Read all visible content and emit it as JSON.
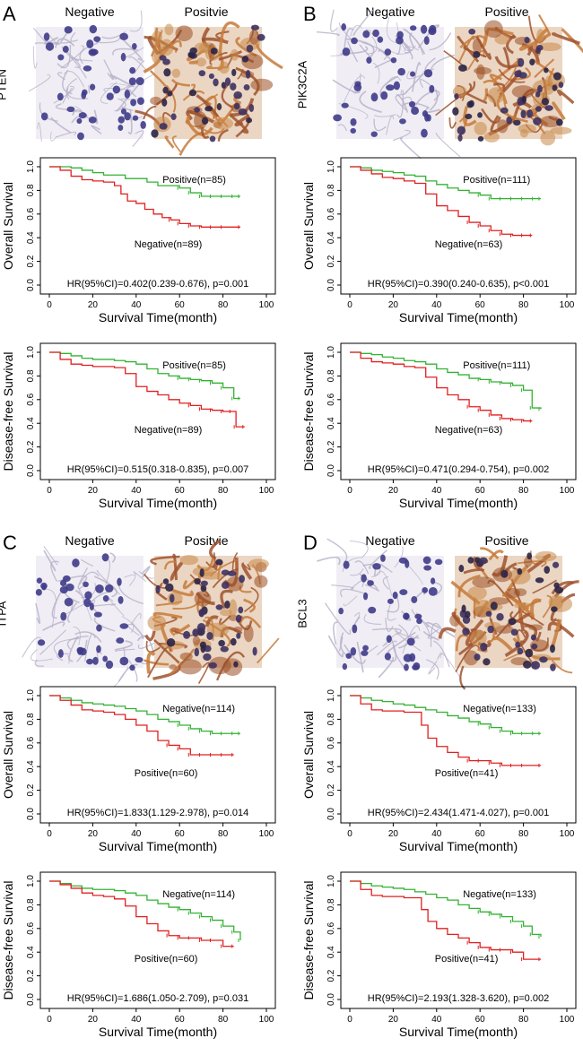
{
  "colors": {
    "positive_line": "#33b233",
    "negative_line": "#e02020",
    "axis": "#000000"
  },
  "panels": [
    {
      "letter": "A",
      "gene": "PTEN",
      "ihc": {
        "left": "Negative",
        "right": "Positvie",
        "left_stain": "negative",
        "right_stain": "positive"
      },
      "plots": [
        {
          "title_y": "Overall Survival",
          "xlabel": "Survival Time(month)",
          "hr_text": "HR(95%CI)=0.402(0.239-0.676), p=0.001",
          "legend_green": "Positive(n=85)",
          "legend_red": "Negative(n=89)"
        },
        {
          "title_y": "Disease-free Survival",
          "xlabel": "Survival Time(month)",
          "hr_text": "HR(95%CI)=0.515(0.318-0.835), p=0.007",
          "legend_green": "Positive(n=85)",
          "legend_red": "Negative(n=89)"
        }
      ]
    },
    {
      "letter": "B",
      "gene": "PIK3C2A",
      "ihc": {
        "left": "Negative",
        "right": "Positive",
        "left_stain": "negative",
        "right_stain": "positive"
      },
      "plots": [
        {
          "title_y": "Overall Survival",
          "xlabel": "Survival Time(month)",
          "hr_text": "HR(95%CI)=0.390(0.240-0.635), p<0.001",
          "legend_green": "Positive(n=111)",
          "legend_red": "Negative(n=63)"
        },
        {
          "title_y": "Disease-free Survival",
          "xlabel": "Survival Time(month)",
          "hr_text": "HR(95%CI)=0.471(0.294-0.754), p=0.002",
          "legend_green": "Positive(n=111)",
          "legend_red": "Negative(n=63)"
        }
      ]
    },
    {
      "letter": "C",
      "gene": "ITPA",
      "ihc": {
        "left": "Negative",
        "right": "Positvie",
        "left_stain": "negative",
        "right_stain": "positive"
      },
      "plots": [
        {
          "title_y": "Overall Survival",
          "xlabel": "Survival Time(month)",
          "hr_text": "HR(95%CI)=1.833(1.129-2.978), p=0.014",
          "legend_green": "Negative(n=114)",
          "legend_red": "Positive(n=60)"
        },
        {
          "title_y": "Disease-free Survival",
          "xlabel": "Survival Time(month)",
          "hr_text": "HR(95%CI)=1.686(1.050-2.709), p=0.031",
          "legend_green": "Negative(n=114)",
          "legend_red": "Positive(n=60)"
        }
      ]
    },
    {
      "letter": "D",
      "gene": "BCL3",
      "ihc": {
        "left": "Negative",
        "right": "Positive",
        "left_stain": "negative",
        "right_stain": "positive"
      },
      "plots": [
        {
          "title_y": "Overall Survival",
          "xlabel": "Survival Time(month)",
          "hr_text": "HR(95%CI)=2.434(1.471-4.027), p=0.001",
          "legend_green": "Negative(n=133)",
          "legend_red": "Positive(n=41)"
        },
        {
          "title_y": "Disease-free Survival",
          "xlabel": "Survival Time(month)",
          "hr_text": "HR(95%CI)=2.193(1.328-3.620), p=0.002",
          "legend_green": "Negative(n=133)",
          "legend_red": "Positive(n=41)"
        }
      ]
    }
  ],
  "chart_data": [
    {
      "id": "A-OS",
      "type": "line",
      "xlabel": "Survival Time(month)",
      "ylabel": "Overall Survival",
      "xlim": [
        0,
        100
      ],
      "ylim": [
        0,
        1
      ],
      "xticks": [
        0,
        20,
        40,
        60,
        80,
        100
      ],
      "yticks": [
        0.0,
        0.2,
        0.4,
        0.6,
        0.8,
        1.0
      ],
      "series": [
        {
          "name": "Positive(n=85)",
          "color": "green",
          "x": [
            0,
            5,
            10,
            15,
            20,
            25,
            30,
            35,
            40,
            45,
            50,
            55,
            60,
            65,
            70,
            75,
            80,
            85,
            88
          ],
          "y": [
            1.0,
            1.0,
            0.99,
            0.97,
            0.95,
            0.93,
            0.93,
            0.9,
            0.9,
            0.87,
            0.84,
            0.84,
            0.82,
            0.78,
            0.75,
            0.75,
            0.75,
            0.75,
            0.75
          ]
        },
        {
          "name": "Negative(n=89)",
          "color": "red",
          "x": [
            0,
            5,
            10,
            15,
            20,
            25,
            30,
            33,
            36,
            40,
            44,
            48,
            52,
            56,
            60,
            65,
            70,
            75,
            80,
            88
          ],
          "y": [
            1.0,
            0.97,
            0.92,
            0.89,
            0.88,
            0.87,
            0.84,
            0.77,
            0.71,
            0.69,
            0.64,
            0.6,
            0.57,
            0.55,
            0.52,
            0.5,
            0.49,
            0.49,
            0.49,
            0.49
          ]
        }
      ]
    },
    {
      "id": "A-DFS",
      "type": "line",
      "xlabel": "Survival Time(month)",
      "ylabel": "Disease-free Survival",
      "xlim": [
        0,
        100
      ],
      "ylim": [
        0,
        1
      ],
      "xticks": [
        0,
        20,
        40,
        60,
        80,
        100
      ],
      "yticks": [
        0.0,
        0.2,
        0.4,
        0.6,
        0.8,
        1.0
      ],
      "series": [
        {
          "name": "Positive(n=85)",
          "color": "green",
          "x": [
            0,
            5,
            10,
            15,
            20,
            25,
            30,
            35,
            40,
            45,
            50,
            55,
            60,
            65,
            70,
            75,
            80,
            85,
            88
          ],
          "y": [
            1.0,
            0.99,
            0.97,
            0.95,
            0.94,
            0.94,
            0.93,
            0.92,
            0.9,
            0.86,
            0.82,
            0.8,
            0.78,
            0.77,
            0.76,
            0.74,
            0.7,
            0.61,
            0.61
          ]
        },
        {
          "name": "Negative(n=89)",
          "color": "red",
          "x": [
            0,
            5,
            10,
            15,
            20,
            25,
            30,
            35,
            40,
            45,
            50,
            55,
            60,
            65,
            70,
            75,
            80,
            84,
            86,
            90
          ],
          "y": [
            1.0,
            0.94,
            0.9,
            0.89,
            0.88,
            0.88,
            0.87,
            0.82,
            0.71,
            0.67,
            0.64,
            0.6,
            0.57,
            0.55,
            0.52,
            0.51,
            0.5,
            0.5,
            0.37,
            0.37
          ]
        }
      ]
    },
    {
      "id": "B-OS",
      "type": "line",
      "xlabel": "Survival Time(month)",
      "ylabel": "Overall Survival",
      "xlim": [
        0,
        100
      ],
      "ylim": [
        0,
        1
      ],
      "xticks": [
        0,
        20,
        40,
        60,
        80,
        100
      ],
      "yticks": [
        0.0,
        0.2,
        0.4,
        0.6,
        0.8,
        1.0
      ],
      "series": [
        {
          "name": "Positive(n=111)",
          "color": "green",
          "x": [
            0,
            5,
            10,
            15,
            20,
            25,
            30,
            35,
            40,
            45,
            50,
            55,
            60,
            65,
            70,
            75,
            80,
            85,
            88
          ],
          "y": [
            1.0,
            0.99,
            0.97,
            0.96,
            0.95,
            0.93,
            0.92,
            0.88,
            0.85,
            0.82,
            0.8,
            0.78,
            0.76,
            0.73,
            0.73,
            0.73,
            0.73,
            0.73,
            0.73
          ]
        },
        {
          "name": "Negative(n=63)",
          "color": "red",
          "x": [
            0,
            5,
            10,
            15,
            20,
            25,
            30,
            35,
            40,
            45,
            50,
            55,
            60,
            65,
            70,
            75,
            80,
            84
          ],
          "y": [
            1.0,
            0.97,
            0.94,
            0.91,
            0.9,
            0.88,
            0.86,
            0.77,
            0.67,
            0.63,
            0.58,
            0.53,
            0.5,
            0.46,
            0.43,
            0.42,
            0.42,
            0.42
          ]
        }
      ]
    },
    {
      "id": "B-DFS",
      "type": "line",
      "xlabel": "Survival Time(month)",
      "ylabel": "Disease-free Survival",
      "xlim": [
        0,
        100
      ],
      "ylim": [
        0,
        1
      ],
      "xticks": [
        0,
        20,
        40,
        60,
        80,
        100
      ],
      "yticks": [
        0.0,
        0.2,
        0.4,
        0.6,
        0.8,
        1.0
      ],
      "series": [
        {
          "name": "Positive(n=111)",
          "color": "green",
          "x": [
            0,
            5,
            10,
            15,
            20,
            25,
            30,
            35,
            40,
            45,
            50,
            55,
            60,
            65,
            70,
            75,
            80,
            84,
            88
          ],
          "y": [
            1.0,
            0.99,
            0.98,
            0.96,
            0.95,
            0.93,
            0.92,
            0.9,
            0.86,
            0.83,
            0.81,
            0.78,
            0.77,
            0.75,
            0.74,
            0.72,
            0.68,
            0.53,
            0.52
          ]
        },
        {
          "name": "Negative(n=63)",
          "color": "red",
          "x": [
            0,
            5,
            10,
            15,
            20,
            25,
            30,
            35,
            40,
            45,
            50,
            55,
            60,
            65,
            70,
            75,
            80,
            84
          ],
          "y": [
            1.0,
            0.95,
            0.92,
            0.91,
            0.9,
            0.88,
            0.87,
            0.79,
            0.7,
            0.64,
            0.6,
            0.54,
            0.51,
            0.47,
            0.44,
            0.43,
            0.42,
            0.42
          ]
        }
      ]
    },
    {
      "id": "C-OS",
      "type": "line",
      "xlabel": "Survival Time(month)",
      "ylabel": "Overall Survival",
      "xlim": [
        0,
        100
      ],
      "ylim": [
        0,
        1
      ],
      "xticks": [
        0,
        20,
        40,
        60,
        80,
        100
      ],
      "yticks": [
        0.0,
        0.2,
        0.4,
        0.6,
        0.8,
        1.0
      ],
      "series": [
        {
          "name": "Negative(n=114)",
          "color": "green",
          "x": [
            0,
            5,
            10,
            15,
            20,
            25,
            30,
            35,
            40,
            45,
            50,
            55,
            60,
            65,
            70,
            75,
            80,
            85,
            88
          ],
          "y": [
            1.0,
            0.98,
            0.96,
            0.94,
            0.93,
            0.92,
            0.91,
            0.89,
            0.87,
            0.84,
            0.8,
            0.78,
            0.75,
            0.72,
            0.7,
            0.68,
            0.68,
            0.68,
            0.68
          ]
        },
        {
          "name": "Positive(n=60)",
          "color": "red",
          "x": [
            0,
            5,
            10,
            15,
            20,
            25,
            30,
            35,
            40,
            45,
            50,
            55,
            60,
            65,
            70,
            75,
            80,
            85
          ],
          "y": [
            1.0,
            0.96,
            0.92,
            0.88,
            0.87,
            0.86,
            0.84,
            0.8,
            0.75,
            0.7,
            0.62,
            0.58,
            0.55,
            0.5,
            0.5,
            0.5,
            0.5,
            0.5
          ]
        }
      ]
    },
    {
      "id": "C-DFS",
      "type": "line",
      "xlabel": "Survival Time(month)",
      "ylabel": "Disease-free Survival",
      "xlim": [
        0,
        100
      ],
      "ylim": [
        0,
        1
      ],
      "xticks": [
        0,
        20,
        40,
        60,
        80,
        100
      ],
      "yticks": [
        0.0,
        0.2,
        0.4,
        0.6,
        0.8,
        1.0
      ],
      "series": [
        {
          "name": "Negative(n=114)",
          "color": "green",
          "x": [
            0,
            5,
            10,
            15,
            20,
            25,
            30,
            35,
            40,
            45,
            50,
            55,
            60,
            65,
            70,
            75,
            80,
            85,
            88
          ],
          "y": [
            1.0,
            0.98,
            0.96,
            0.94,
            0.93,
            0.93,
            0.92,
            0.9,
            0.88,
            0.84,
            0.81,
            0.78,
            0.76,
            0.73,
            0.7,
            0.67,
            0.62,
            0.57,
            0.5
          ]
        },
        {
          "name": "Positive(n=60)",
          "color": "red",
          "x": [
            0,
            5,
            10,
            15,
            20,
            25,
            30,
            35,
            40,
            45,
            50,
            55,
            60,
            65,
            70,
            75,
            80,
            85
          ],
          "y": [
            1.0,
            0.97,
            0.94,
            0.9,
            0.88,
            0.87,
            0.85,
            0.79,
            0.7,
            0.64,
            0.58,
            0.54,
            0.52,
            0.52,
            0.5,
            0.5,
            0.45,
            0.45
          ]
        }
      ]
    },
    {
      "id": "D-OS",
      "type": "line",
      "xlabel": "Survival Time(month)",
      "ylabel": "Overall Survival",
      "xlim": [
        0,
        100
      ],
      "ylim": [
        0,
        1
      ],
      "xticks": [
        0,
        20,
        40,
        60,
        80,
        100
      ],
      "yticks": [
        0.0,
        0.2,
        0.4,
        0.6,
        0.8,
        1.0
      ],
      "series": [
        {
          "name": "Negative(n=133)",
          "color": "green",
          "x": [
            0,
            5,
            10,
            15,
            20,
            25,
            30,
            35,
            40,
            45,
            50,
            55,
            60,
            65,
            70,
            75,
            80,
            85,
            88
          ],
          "y": [
            1.0,
            0.98,
            0.96,
            0.95,
            0.93,
            0.92,
            0.9,
            0.88,
            0.86,
            0.83,
            0.81,
            0.78,
            0.76,
            0.73,
            0.7,
            0.68,
            0.68,
            0.68,
            0.68
          ]
        },
        {
          "name": "Positive(n=41)",
          "color": "red",
          "x": [
            0,
            5,
            10,
            15,
            20,
            25,
            30,
            33,
            36,
            40,
            45,
            50,
            55,
            60,
            65,
            70,
            75,
            80,
            88
          ],
          "y": [
            1.0,
            0.93,
            0.88,
            0.87,
            0.87,
            0.86,
            0.86,
            0.75,
            0.64,
            0.57,
            0.52,
            0.48,
            0.45,
            0.45,
            0.43,
            0.41,
            0.41,
            0.41,
            0.41
          ]
        }
      ]
    },
    {
      "id": "D-DFS",
      "type": "line",
      "xlabel": "Survival Time(month)",
      "ylabel": "Disease-free Survival",
      "xlim": [
        0,
        100
      ],
      "ylim": [
        0,
        1
      ],
      "xticks": [
        0,
        20,
        40,
        60,
        80,
        100
      ],
      "yticks": [
        0.0,
        0.2,
        0.4,
        0.6,
        0.8,
        1.0
      ],
      "series": [
        {
          "name": "Negative(n=133)",
          "color": "green",
          "x": [
            0,
            5,
            10,
            15,
            20,
            25,
            30,
            35,
            40,
            45,
            50,
            55,
            60,
            65,
            70,
            75,
            80,
            84,
            88
          ],
          "y": [
            1.0,
            0.98,
            0.96,
            0.95,
            0.94,
            0.93,
            0.91,
            0.89,
            0.86,
            0.84,
            0.8,
            0.77,
            0.74,
            0.72,
            0.7,
            0.66,
            0.62,
            0.55,
            0.53
          ]
        },
        {
          "name": "Positive(n=41)",
          "color": "red",
          "x": [
            0,
            5,
            10,
            15,
            20,
            25,
            30,
            33,
            36,
            40,
            45,
            50,
            55,
            60,
            65,
            70,
            75,
            80,
            88
          ],
          "y": [
            1.0,
            0.93,
            0.88,
            0.87,
            0.87,
            0.86,
            0.86,
            0.76,
            0.66,
            0.6,
            0.55,
            0.52,
            0.48,
            0.44,
            0.42,
            0.42,
            0.4,
            0.34,
            0.34
          ]
        }
      ]
    }
  ]
}
